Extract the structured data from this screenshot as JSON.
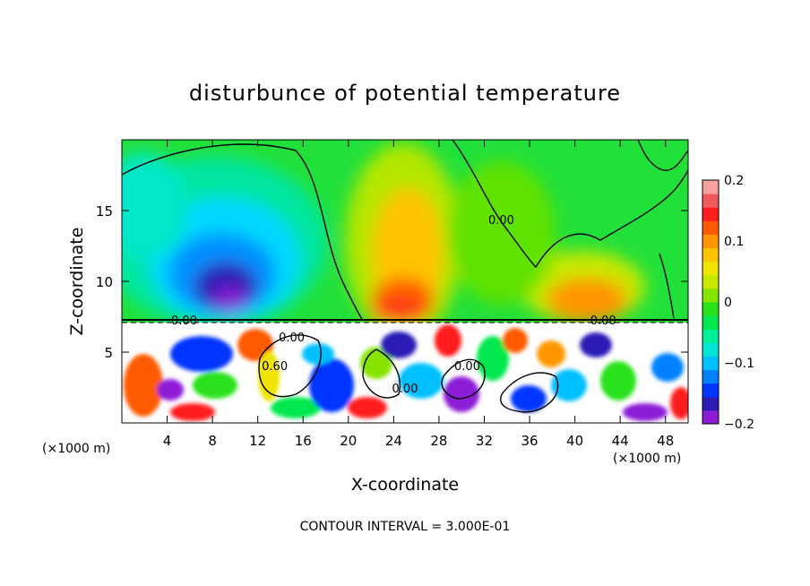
{
  "chart_data": {
    "type": "heatmap",
    "title": "disturbunce of potential temperature",
    "xlabel": "X-coordinate",
    "ylabel": "Z-coordinate",
    "x_unit": "(×1000 m)",
    "x_unit_right": "(×1000 m)",
    "xlim": [
      0,
      50
    ],
    "ylim": [
      0,
      20
    ],
    "x_ticks": [
      4,
      8,
      12,
      16,
      20,
      24,
      28,
      32,
      36,
      40,
      44,
      48
    ],
    "y_ticks": [
      5,
      10,
      15
    ],
    "colorbar": {
      "min": -0.2,
      "max": 0.2,
      "tick_values": [
        0.2,
        0.1,
        0,
        -0.1,
        -0.2
      ],
      "tick_labels": [
        "0.2",
        "0.1",
        "0",
        "−0.1",
        "−0.2"
      ]
    },
    "contour_labels": [
      {
        "text": "0.00",
        "x": 5.5,
        "y": 7.2
      },
      {
        "text": "0.00",
        "x": 33.5,
        "y": 14.3
      },
      {
        "text": "0.00",
        "x": 42.5,
        "y": 7.2
      },
      {
        "text": "0.00",
        "x": 15,
        "y": 6.0
      },
      {
        "text": "0.60",
        "x": 13.5,
        "y": 4.0
      },
      {
        "text": "0.00",
        "x": 25,
        "y": 2.4
      },
      {
        "text": "0.00",
        "x": 30.5,
        "y": 4.0
      }
    ],
    "annotation": "CONTOUR INTERVAL = 3.000E-01"
  },
  "colors": {
    "scale": [
      "#8c1cd6",
      "#2a1cb4",
      "#0036ff",
      "#0082ff",
      "#00c0ff",
      "#00e6d6",
      "#00f098",
      "#00e84e",
      "#2ae21a",
      "#86e400",
      "#c8e800",
      "#f0e400",
      "#ffc400",
      "#ff9600",
      "#ff5a00",
      "#ff1e1e",
      "#f05a5a",
      "#f8a0a0"
    ]
  }
}
